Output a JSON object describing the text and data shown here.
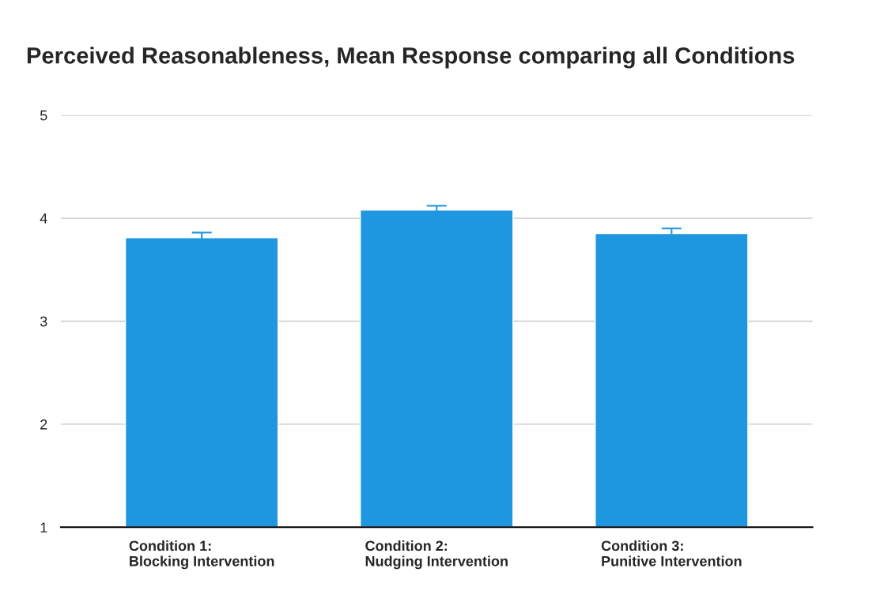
{
  "chart_data": {
    "type": "bar",
    "title": "Perceived Reasonableness, Mean Response comparing all Conditions",
    "categories": [
      "Condition 1:\nBlocking Intervention",
      "Condition 2:\nNudging Intervention",
      "Condition 3:\nPunitive Intervention"
    ],
    "values": [
      3.81,
      4.08,
      3.85
    ],
    "errors": [
      0.05,
      0.04,
      0.05
    ],
    "color": "#1e96e0",
    "ylim": [
      1,
      5
    ],
    "yticks": [
      1,
      2,
      3,
      4,
      5
    ],
    "grid": "y"
  }
}
